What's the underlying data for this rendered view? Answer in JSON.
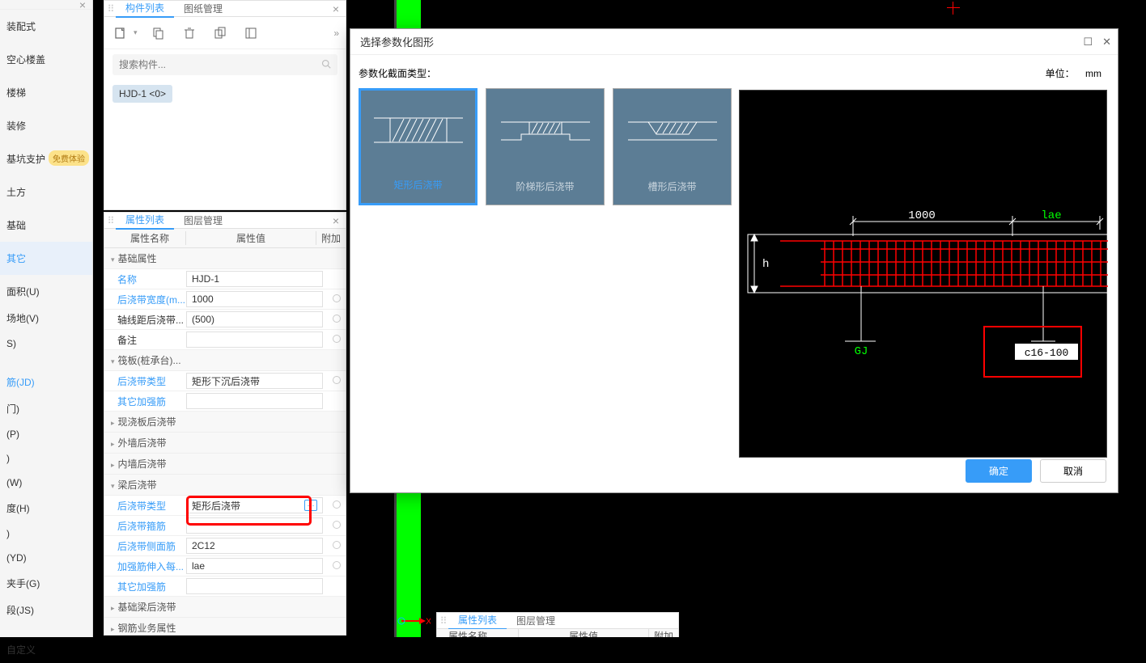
{
  "leftNav": {
    "items": [
      {
        "label": "装配式"
      },
      {
        "label": "空心楼盖"
      },
      {
        "label": "楼梯"
      },
      {
        "label": "装修"
      },
      {
        "label": "基坑支护",
        "badge": "免费体验"
      },
      {
        "label": "土方"
      },
      {
        "label": "基础"
      },
      {
        "label": "其它",
        "active": true
      }
    ],
    "subs": [
      {
        "label": "面积(U)"
      },
      {
        "label": "场地(V)"
      },
      {
        "label": "S)"
      },
      {
        "label": ""
      },
      {
        "label": "筋(JD)",
        "blue": true
      },
      {
        "label": "门)"
      },
      {
        "label": "(P)"
      },
      {
        "label": ")"
      },
      {
        "label": "(W)"
      },
      {
        "label": "度(H)"
      },
      {
        "label": ")"
      },
      {
        "label": "(YD)"
      },
      {
        "label": "夹手(G)"
      },
      {
        "label": "段(JS)"
      },
      {
        "label": ""
      },
      {
        "label": "自定义"
      }
    ]
  },
  "compPanel": {
    "tabs": [
      {
        "label": "构件列表",
        "active": true
      },
      {
        "label": "图纸管理"
      }
    ],
    "searchPlaceholder": "搜索构件...",
    "items": [
      "HJD-1 <0>"
    ]
  },
  "propPanel": {
    "tabs": [
      {
        "label": "属性列表",
        "active": true
      },
      {
        "label": "图层管理"
      }
    ],
    "dialogPanel": {
      "tabs": [
        {
          "label": "属性列表",
          "active": true
        },
        {
          "label": "图层管理"
        }
      ],
      "headers": {
        "name": "属性名称",
        "value": "属性值",
        "extra": "附加"
      }
    },
    "headers": {
      "name": "属性名称",
      "value": "属性值",
      "extra": "附加"
    },
    "groups": [
      {
        "title": "基础属性",
        "rows": [
          {
            "label": "名称",
            "value": "HJD-1",
            "blue": true,
            "radio": false
          },
          {
            "label": "后浇带宽度(m...",
            "value": "1000",
            "blue": true,
            "radio": true
          },
          {
            "label": "轴线距后浇带...",
            "value": "(500)",
            "blue": false,
            "radio": true
          },
          {
            "label": "备注",
            "value": "",
            "blue": false,
            "radio": true
          }
        ]
      },
      {
        "title": "筏板(桩承台)...",
        "rows": [
          {
            "label": "后浇带类型",
            "value": "矩形下沉后浇带",
            "blue": true,
            "radio": true
          },
          {
            "label": "其它加强筋",
            "value": "",
            "blue": true,
            "radio": false
          }
        ]
      },
      {
        "title": "现浇板后浇带",
        "collapsed": true,
        "rows": []
      },
      {
        "title": "外墙后浇带",
        "collapsed": true,
        "rows": []
      },
      {
        "title": "内墙后浇带",
        "collapsed": true,
        "rows": []
      },
      {
        "title": "梁后浇带",
        "rows": [
          {
            "label": "后浇带类型",
            "value": "矩形后浇带",
            "blue": true,
            "radio": true,
            "highlight": true,
            "dots": true
          },
          {
            "label": "后浇带箍筋",
            "value": "",
            "blue": true,
            "radio": true
          },
          {
            "label": "后浇带侧面筋",
            "value": "2C12",
            "blue": true,
            "radio": true
          },
          {
            "label": "加强筋伸入每...",
            "value": "lae",
            "blue": true,
            "radio": true
          },
          {
            "label": "其它加强筋",
            "value": "",
            "blue": true,
            "radio": false
          }
        ]
      },
      {
        "title": "基础梁后浇带",
        "collapsed": true,
        "rows": []
      },
      {
        "title": "钢筋业务属性",
        "collapsed": true,
        "rows": []
      }
    ]
  },
  "dialog": {
    "title": "选择参数化图形",
    "paramLabel": "参数化截面类型：",
    "unitLabel": "单位：",
    "unitValue": "mm",
    "options": [
      {
        "label": "矩形后浇带",
        "selected": true
      },
      {
        "label": "阶梯形后浇带"
      },
      {
        "label": "槽形后浇带"
      }
    ],
    "preview": {
      "dim1000": "1000",
      "dimLae": "lae",
      "dimH": "h",
      "labelGJ": "GJ",
      "labelRebar": "c16-100"
    },
    "okBtn": "确定",
    "cancelBtn": "取消"
  }
}
